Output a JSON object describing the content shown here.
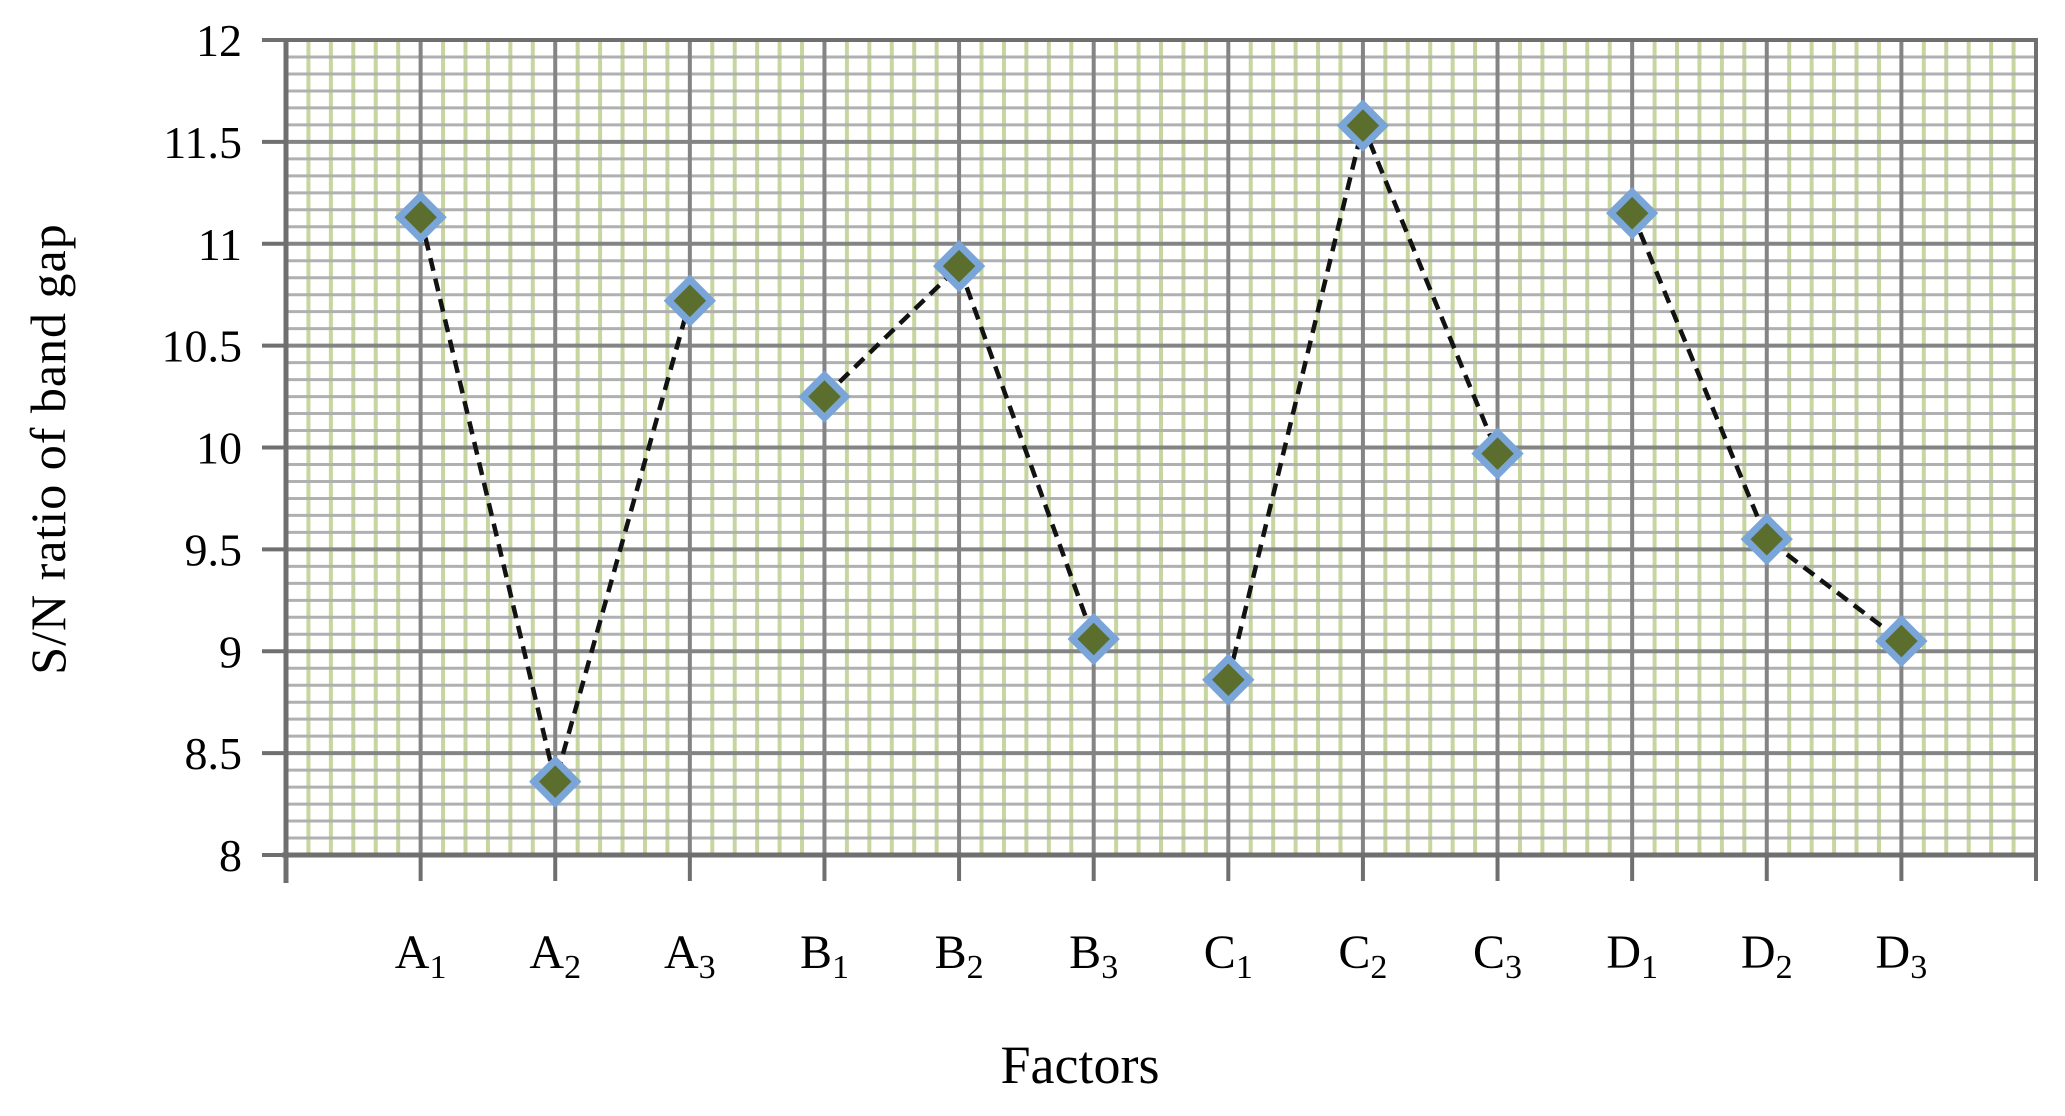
{
  "chart_data": {
    "type": "line",
    "title": "",
    "xlabel": "Factors",
    "ylabel": "S/N ratio of band gap",
    "ylim": [
      8,
      12
    ],
    "ytick_step": 0.5,
    "ytick_labels": [
      "12",
      "11.5",
      "11",
      "10.5",
      "10",
      "9.5",
      "9",
      "8.5",
      "8"
    ],
    "grid": "fine graph-paper grid, green vertical minor lines, gray horizontal minor lines, gray major lines",
    "legend_position": "none",
    "categories": [
      "A1",
      "A2",
      "A3",
      "B1",
      "B2",
      "B3",
      "C1",
      "C2",
      "C3",
      "D1",
      "D2",
      "D3"
    ],
    "category_parts": [
      {
        "base": "A",
        "sub": "1"
      },
      {
        "base": "A",
        "sub": "2"
      },
      {
        "base": "A",
        "sub": "3"
      },
      {
        "base": "B",
        "sub": "1"
      },
      {
        "base": "B",
        "sub": "2"
      },
      {
        "base": "B",
        "sub": "3"
      },
      {
        "base": "C",
        "sub": "1"
      },
      {
        "base": "C",
        "sub": "2"
      },
      {
        "base": "C",
        "sub": "3"
      },
      {
        "base": "D",
        "sub": "1"
      },
      {
        "base": "D",
        "sub": "2"
      },
      {
        "base": "D",
        "sub": "3"
      }
    ],
    "values": [
      11.13,
      8.36,
      10.72,
      10.25,
      10.89,
      9.06,
      8.86,
      11.58,
      9.97,
      11.15,
      9.55,
      9.05
    ],
    "connected_groups": [
      [
        0,
        1,
        2
      ],
      [
        3,
        4,
        5
      ],
      [
        6,
        7,
        8
      ],
      [
        9,
        10,
        11
      ]
    ],
    "marker": "diamond"
  },
  "colors": {
    "background": "#ffffff",
    "axis": "#6f6f6f",
    "major_grid": "#848484",
    "minor_grid_horizontal": "#b0b0b0",
    "minor_grid_vertical_green": "#c6d69e",
    "line": "#121212",
    "marker_fill": "#5c6e2d",
    "marker_border": "#7aa5d8",
    "text": "#000000"
  }
}
